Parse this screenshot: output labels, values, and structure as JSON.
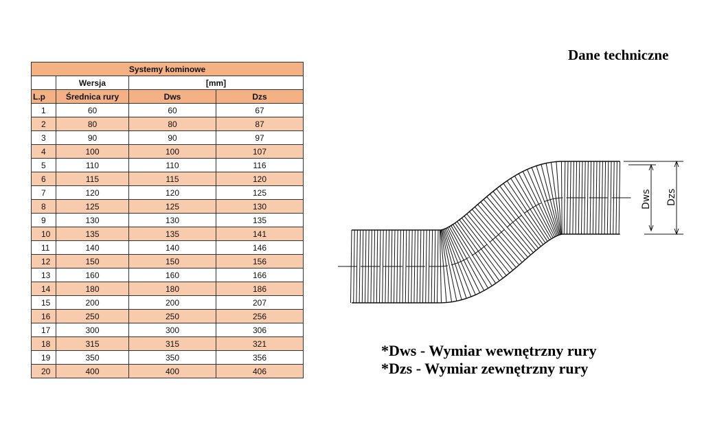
{
  "page_title": "Dane techniczne",
  "table": {
    "title": "Systemy kominowe",
    "group_headers": {
      "wersja": "Wersja",
      "unit": "[mm]"
    },
    "columns": [
      "L.p",
      "Średnica rury",
      "Dws",
      "Dzs"
    ],
    "rows": [
      [
        "1",
        "60",
        "60",
        "67"
      ],
      [
        "2",
        "80",
        "80",
        "87"
      ],
      [
        "3",
        "90",
        "90",
        "97"
      ],
      [
        "4",
        "100",
        "100",
        "107"
      ],
      [
        "5",
        "110",
        "110",
        "116"
      ],
      [
        "6",
        "115",
        "115",
        "120"
      ],
      [
        "7",
        "120",
        "120",
        "125"
      ],
      [
        "8",
        "125",
        "125",
        "130"
      ],
      [
        "9",
        "130",
        "130",
        "135"
      ],
      [
        "10",
        "135",
        "135",
        "141"
      ],
      [
        "11",
        "140",
        "140",
        "146"
      ],
      [
        "12",
        "150",
        "150",
        "156"
      ],
      [
        "13",
        "160",
        "160",
        "166"
      ],
      [
        "14",
        "180",
        "180",
        "186"
      ],
      [
        "15",
        "200",
        "200",
        "207"
      ],
      [
        "16",
        "250",
        "250",
        "256"
      ],
      [
        "17",
        "300",
        "300",
        "306"
      ],
      [
        "18",
        "315",
        "315",
        "321"
      ],
      [
        "19",
        "350",
        "350",
        "356"
      ],
      [
        "20",
        "400",
        "400",
        "406"
      ]
    ],
    "colors": {
      "header": "#f4b183",
      "alt_row": "#f8cbad"
    }
  },
  "diagram": {
    "label_dws": "Dws",
    "label_dzs": "Dzs"
  },
  "notes": [
    "*Dws - Wymiar wewnętrzny rury",
    "*Dzs - Wymiar zewnętrzny rury"
  ]
}
